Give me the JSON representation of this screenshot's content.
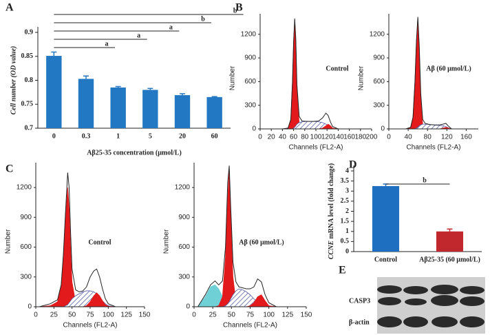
{
  "chart_data": [
    {
      "type": "bar",
      "label": "A",
      "ylabel": "Cell number (OD value)",
      "xlabel": "Aβ25-35 concentration (μmol/L)",
      "categories": [
        "0",
        "0.3",
        "1",
        "5",
        "20",
        "60"
      ],
      "values": [
        0.851,
        0.803,
        0.785,
        0.78,
        0.769,
        0.765
      ],
      "errors": [
        0.008,
        0.006,
        0.002,
        0.003,
        0.003,
        0.001
      ],
      "color": "#2378c3",
      "ylim": [
        0.7,
        0.9
      ],
      "yticks": [
        0.7,
        0.75,
        0.8,
        0.85,
        0.9
      ],
      "annotations": [
        "a",
        "a",
        "a",
        "b",
        "b"
      ]
    },
    {
      "type": "area",
      "label": "B",
      "annotation": "Control",
      "xlabel": "Channels (FL2-A)",
      "ylabel": "Number",
      "xlim": [
        0,
        200
      ],
      "xticks": [
        0,
        20,
        40,
        60,
        80,
        100,
        120,
        140,
        160,
        180,
        200
      ],
      "ylim": [
        0,
        1460
      ],
      "yticks": [
        0,
        300,
        600,
        900,
        1200
      ],
      "x": [
        40,
        50,
        55,
        58,
        60,
        62,
        64,
        66,
        70,
        75,
        85,
        95,
        105,
        112,
        118,
        122,
        126,
        130,
        140
      ],
      "series": [
        {
          "color": "#e31a1c",
          "style": "area",
          "values": [
            0,
            10,
            120,
            600,
            1100,
            1380,
            1100,
            500,
            80,
            10,
            0,
            0,
            0,
            0,
            0,
            0,
            0,
            0,
            0
          ]
        },
        {
          "color": "#5a5fa8",
          "style": "hatch",
          "values": [
            0,
            0,
            0,
            0,
            10,
            20,
            40,
            60,
            80,
            90,
            95,
            95,
            90,
            80,
            60,
            40,
            20,
            5,
            0
          ]
        },
        {
          "color": "#e31a1c",
          "style": "area",
          "values": [
            0,
            0,
            0,
            0,
            0,
            0,
            0,
            0,
            0,
            0,
            0,
            0,
            0,
            10,
            40,
            60,
            40,
            10,
            0
          ]
        },
        {
          "color": "#222222",
          "style": "line",
          "values": [
            0,
            10,
            120,
            600,
            1100,
            1400,
            1140,
            560,
            160,
            100,
            95,
            95,
            100,
            140,
            200,
            170,
            90,
            30,
            0
          ]
        }
      ]
    },
    {
      "type": "area",
      "annotation": "Aβ (60 μmol/L)",
      "xlabel": "Channels (FL2-A)",
      "ylabel": "Number",
      "xlim": [
        0,
        185
      ],
      "xticks": [
        0,
        40,
        80,
        120,
        160
      ],
      "ylim": [
        0,
        1460
      ],
      "yticks": [
        0,
        300,
        600,
        900,
        1200
      ],
      "x": [
        35,
        45,
        50,
        54,
        57,
        60,
        63,
        66,
        70,
        75,
        85,
        95,
        105,
        112,
        118,
        124,
        130
      ],
      "series": [
        {
          "color": "#e31a1c",
          "style": "area",
          "values": [
            0,
            20,
            150,
            600,
            1100,
            1400,
            1000,
            400,
            60,
            10,
            0,
            0,
            0,
            0,
            0,
            0,
            0
          ]
        },
        {
          "color": "#5a5fa8",
          "style": "hatch",
          "values": [
            0,
            0,
            0,
            0,
            10,
            20,
            40,
            50,
            60,
            60,
            55,
            50,
            45,
            40,
            30,
            10,
            0
          ]
        },
        {
          "color": "#e31a1c",
          "style": "area",
          "values": [
            0,
            0,
            0,
            0,
            0,
            0,
            0,
            0,
            0,
            0,
            0,
            0,
            0,
            10,
            20,
            10,
            0
          ]
        },
        {
          "color": "#222222",
          "style": "line",
          "values": [
            0,
            20,
            150,
            600,
            1110,
            1420,
            1040,
            450,
            120,
            70,
            55,
            50,
            50,
            60,
            70,
            30,
            0
          ]
        }
      ]
    },
    {
      "type": "area",
      "label": "C",
      "annotation": "Control",
      "xlabel": "Channels (FL2-A)",
      "ylabel": "Number",
      "xlim": [
        0,
        150
      ],
      "xticks": [
        0,
        25,
        50,
        75,
        100,
        125,
        150
      ],
      "ylim": [
        0,
        1450
      ],
      "yticks": [
        0,
        300,
        600,
        900,
        1200
      ],
      "x": [
        5,
        20,
        30,
        35,
        38,
        41,
        44,
        46,
        48,
        50,
        55,
        60,
        65,
        70,
        75,
        80,
        84,
        88,
        92,
        96,
        100,
        110
      ],
      "series": [
        {
          "color": "#e31a1c",
          "style": "area",
          "values": [
            0,
            10,
            50,
            200,
            500,
            900,
            1200,
            1000,
            600,
            250,
            40,
            0,
            0,
            0,
            0,
            0,
            0,
            0,
            0,
            0,
            0,
            0
          ]
        },
        {
          "color": "#5a5fa8",
          "style": "hatch",
          "values": [
            0,
            0,
            0,
            0,
            0,
            10,
            20,
            40,
            60,
            80,
            110,
            130,
            150,
            160,
            160,
            150,
            130,
            100,
            60,
            30,
            10,
            0
          ]
        },
        {
          "color": "#e31a1c",
          "style": "area",
          "values": [
            0,
            0,
            0,
            0,
            0,
            0,
            0,
            0,
            0,
            0,
            0,
            0,
            0,
            10,
            50,
            110,
            140,
            110,
            60,
            20,
            5,
            0
          ]
        },
        {
          "color": "#222222",
          "style": "line",
          "values": [
            0,
            30,
            70,
            220,
            520,
            950,
            1350,
            1200,
            750,
            380,
            170,
            150,
            160,
            200,
            300,
            360,
            380,
            300,
            180,
            80,
            30,
            0
          ]
        }
      ]
    },
    {
      "type": "area",
      "annotation": "Aβ (60 μmol/L)",
      "xlabel": "Channels (FL2-A)",
      "ylabel": "Number",
      "xlim": [
        0,
        150
      ],
      "xticks": [
        0,
        25,
        50,
        75,
        100,
        125,
        150
      ],
      "ylim": [
        0,
        1450
      ],
      "yticks": [
        0,
        300,
        600,
        900,
        1200
      ],
      "x": [
        5,
        15,
        22,
        28,
        33,
        38,
        42,
        45,
        47,
        49,
        52,
        56,
        60,
        65,
        70,
        75,
        80,
        85,
        90,
        95,
        100,
        110
      ],
      "series": [
        {
          "color": "#6fd0d6",
          "style": "area",
          "values": [
            0,
            100,
            200,
            220,
            180,
            100,
            40,
            10,
            0,
            0,
            0,
            0,
            0,
            0,
            0,
            0,
            0,
            0,
            0,
            0,
            0,
            0
          ]
        },
        {
          "color": "#e31a1c",
          "style": "area",
          "values": [
            0,
            0,
            0,
            0,
            10,
            100,
            500,
            1100,
            1380,
            900,
            300,
            50,
            0,
            0,
            0,
            0,
            0,
            0,
            0,
            0,
            0,
            0
          ]
        },
        {
          "color": "#5a5fa8",
          "style": "hatch",
          "values": [
            0,
            0,
            0,
            0,
            0,
            0,
            10,
            30,
            50,
            80,
            120,
            160,
            180,
            170,
            150,
            120,
            80,
            50,
            30,
            10,
            5,
            0
          ]
        },
        {
          "color": "#e31a1c",
          "style": "area",
          "values": [
            0,
            0,
            0,
            0,
            0,
            0,
            0,
            0,
            0,
            0,
            0,
            0,
            0,
            0,
            0,
            10,
            40,
            100,
            120,
            60,
            10,
            0
          ]
        },
        {
          "color": "#222222",
          "style": "line",
          "values": [
            0,
            120,
            220,
            260,
            220,
            260,
            600,
            1250,
            1420,
            1000,
            450,
            250,
            200,
            190,
            180,
            180,
            200,
            280,
            250,
            120,
            40,
            0
          ]
        }
      ]
    },
    {
      "type": "bar",
      "label": "D",
      "ylabel": [
        "CCNE",
        " mRNA level (fold change)"
      ],
      "categories": [
        "Control",
        "Aβ25-35 (60 μmol/L)"
      ],
      "values": [
        3.25,
        1.0
      ],
      "errors": [
        0.1,
        0.12
      ],
      "colors": [
        "#1f6fc0",
        "#c0282d"
      ],
      "ylim": [
        0,
        4
      ],
      "yticks": [
        0,
        0.5,
        1,
        1.5,
        2,
        2.5,
        3,
        3.5,
        4
      ],
      "annotations": [
        "b"
      ]
    }
  ],
  "blot": {
    "label": "E",
    "rows": [
      "CASP3",
      "β-actin"
    ]
  }
}
